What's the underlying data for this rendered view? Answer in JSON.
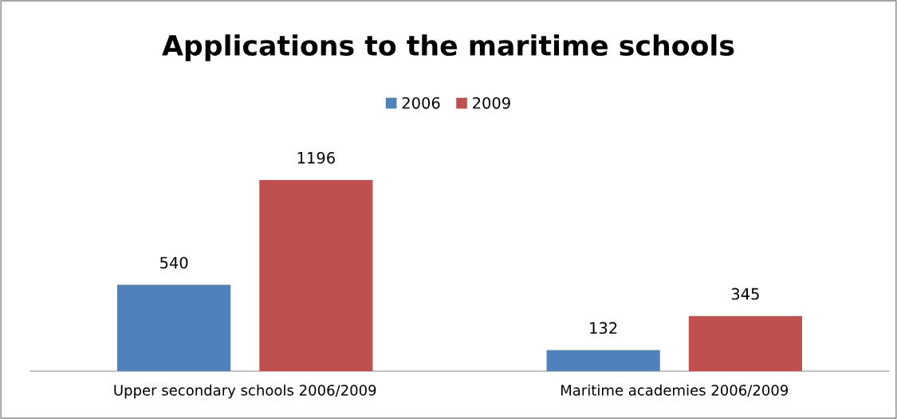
{
  "chart_data": {
    "type": "bar",
    "title": "Applications to the maritime schools",
    "categories": [
      "Upper secondary schools 2006/2009",
      "Maritime academies 2006/2009"
    ],
    "series": [
      {
        "name": "2006",
        "color": "#4f81bd",
        "values": [
          540,
          132
        ]
      },
      {
        "name": "2009",
        "color": "#c0504d",
        "values": [
          1196,
          345
        ]
      }
    ],
    "data_labels": true,
    "legend": "top",
    "grid": false,
    "tick_labels": "x"
  }
}
